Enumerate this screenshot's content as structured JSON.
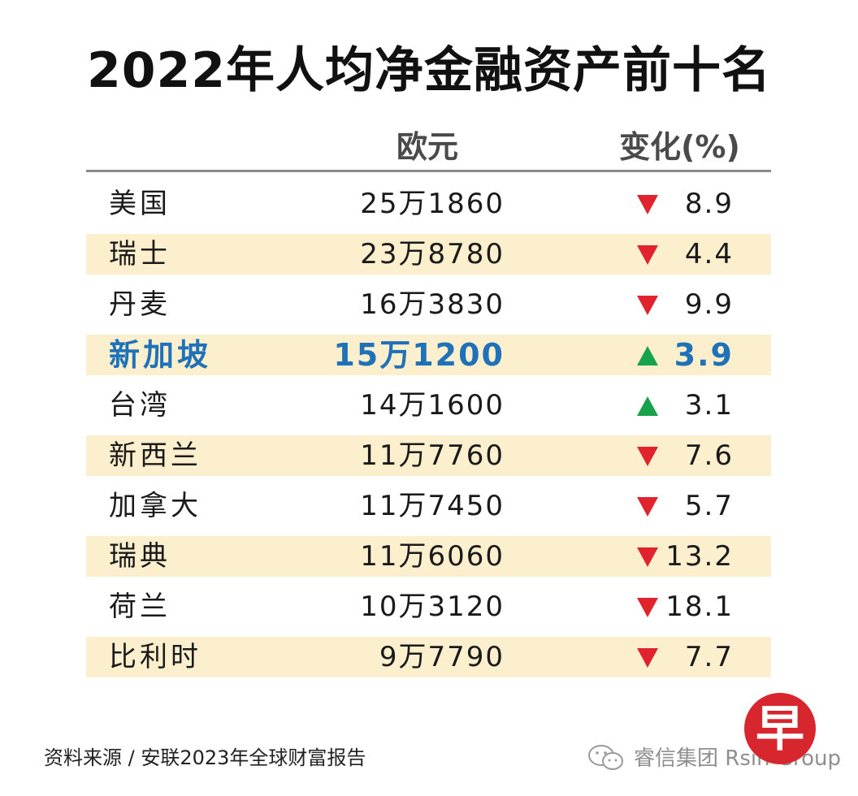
{
  "title": "2022年人均净金融资产前十名",
  "columns": {
    "value": "欧元",
    "change": "变化(%)"
  },
  "rows": [
    {
      "country": "美国",
      "value": "25万1860",
      "change": "8.9",
      "direction": "down"
    },
    {
      "country": "瑞士",
      "value": "23万8780",
      "change": "4.4",
      "direction": "down"
    },
    {
      "country": "丹麦",
      "value": "16万3830",
      "change": "9.9",
      "direction": "down"
    },
    {
      "country": "新加坡",
      "value": "15万1200",
      "change": "3.9",
      "direction": "up",
      "highlight": true
    },
    {
      "country": "台湾",
      "value": "14万1600",
      "change": "3.1",
      "direction": "up"
    },
    {
      "country": "新西兰",
      "value": "11万7760",
      "change": "7.6",
      "direction": "down"
    },
    {
      "country": "加拿大",
      "value": "11万7450",
      "change": "5.7",
      "direction": "down"
    },
    {
      "country": "瑞典",
      "value": "11万6060",
      "change": "13.2",
      "direction": "down"
    },
    {
      "country": "荷兰",
      "value": "10万3120",
      "change": "18.1",
      "direction": "down"
    },
    {
      "country": "比利时",
      "value": "9万7790",
      "change": "7.7",
      "direction": "down"
    }
  ],
  "source": "资料来源 / 安联2023年全球财富报告",
  "brand": "睿信集团 Rsin Group",
  "logo": {
    "char": "早",
    "color": "#d7262e"
  },
  "colors": {
    "down": "#e0232d",
    "up": "#17a24b",
    "highlight": "#1f72b8",
    "band": "#fcefcd"
  },
  "chart_data": {
    "type": "table",
    "title": "2022年人均净金融资产前十名",
    "columns": [
      "欧元",
      "变化(%)"
    ],
    "categories": [
      "美国",
      "瑞士",
      "丹麦",
      "新加坡",
      "台湾",
      "新西兰",
      "加拿大",
      "瑞典",
      "荷兰",
      "比利时"
    ],
    "series": [
      {
        "name": "欧元",
        "values": [
          251860,
          238780,
          163830,
          151200,
          141600,
          117760,
          117450,
          116060,
          103120,
          97790
        ]
      },
      {
        "name": "变化(%)",
        "values": [
          -8.9,
          -4.4,
          -9.9,
          3.9,
          3.1,
          -7.6,
          -5.7,
          -13.2,
          -18.1,
          -7.7
        ]
      }
    ]
  }
}
